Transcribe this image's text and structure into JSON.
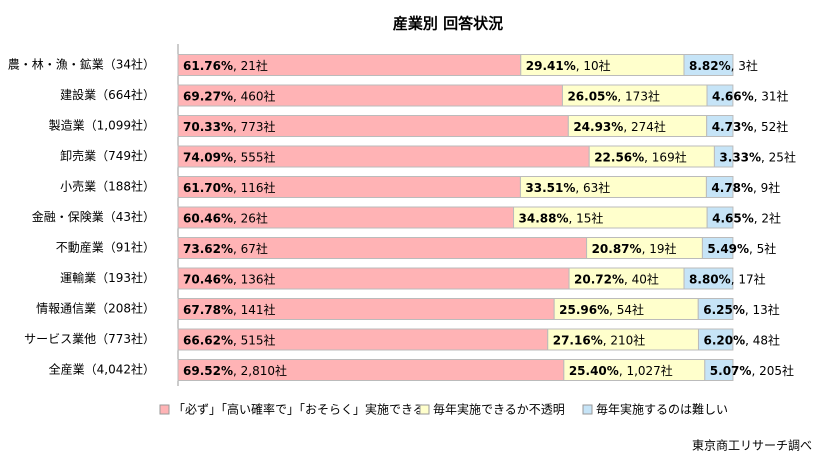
{
  "chart_data": {
    "type": "stacked-bar-100",
    "title": "産業別 回答状況",
    "source": "東京商工リサーチ調べ",
    "orientation": "horizontal",
    "categories": [
      "農・林・漁・鉱業（34社）",
      "建設業（664社）",
      "製造業（1,099社）",
      "卸売業（749社）",
      "小売業（188社）",
      "金融・保険業（43社）",
      "不動産業（91社）",
      "運輸業（193社）",
      "情報通信業（208社）",
      "サービス業他（773社）",
      "全産業（4,042社）"
    ],
    "xlim": [
      0,
      100
    ],
    "series": [
      {
        "name": "「必ず」「高い確率で」「おそらく」実施できる",
        "color": "#ffb3b5",
        "values": [
          61.76,
          69.27,
          70.33,
          74.09,
          61.7,
          60.46,
          73.62,
          70.46,
          67.78,
          66.62,
          69.52
        ],
        "value_labels": [
          "61.76%, 21社",
          "69.27%, 460社",
          "70.33%, 773社",
          "74.09%, 555社",
          "61.70%, 116社",
          "60.46%, 26社",
          "73.62%, 67社",
          "70.46%, 136社",
          "67.78%, 141社",
          "66.62%, 515社",
          "69.52%, 2,810社"
        ]
      },
      {
        "name": "毎年実施できるか不透明",
        "color": "#ffffcc",
        "values": [
          29.41,
          26.05,
          24.93,
          22.56,
          33.51,
          34.88,
          20.87,
          20.72,
          25.96,
          27.16,
          25.4
        ],
        "value_labels": [
          "29.41%, 10社",
          "26.05%, 173社",
          "24.93%, 274社",
          "22.56%, 169社",
          "33.51%, 63社",
          "34.88%, 15社",
          "20.87%, 19社",
          "20.72%, 40社",
          "25.96%, 54社",
          "27.16%, 210社",
          "25.40%, 1,027社"
        ]
      },
      {
        "name": "毎年実施するのは難しい",
        "color": "#c6e4f7",
        "values": [
          8.82,
          4.66,
          4.73,
          3.33,
          4.78,
          4.65,
          5.49,
          8.8,
          6.25,
          6.2,
          5.07
        ],
        "value_labels": [
          "8.82%, 3社",
          "4.66%, 31社",
          "4.73%, 52社",
          "3.33%, 25社",
          "4.78%, 9社",
          "4.65%, 2社",
          "5.49%, 5社",
          "8.80%, 17社",
          "6.25%, 13社",
          "6.20%, 48社",
          "5.07%, 205社"
        ]
      }
    ]
  }
}
